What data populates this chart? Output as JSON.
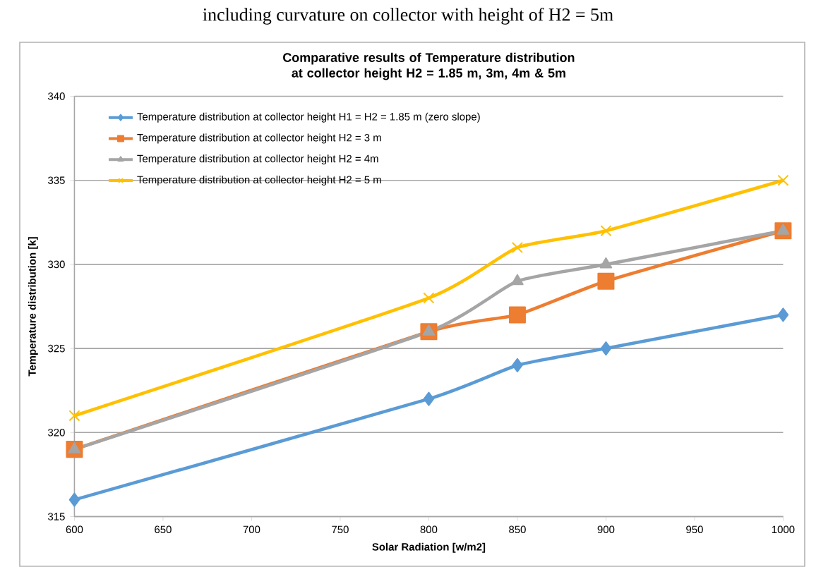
{
  "chart_data": {
    "type": "line",
    "title": "Comparative results of  Temperature distribution at collector height H2 = 1.85 m, 3m, 4m & 5m",
    "xlabel": "Solar Radiation [w/m2]",
    "ylabel": "Temperature distribution [k]",
    "annotations": [
      "including curvature on collector with height of H2 = 5m"
    ],
    "x": [
      600,
      800,
      850,
      900,
      1000
    ],
    "series": [
      {
        "name": "Temperature distribution at collector height H1 = H2 = 1.85 m (zero slope)",
        "color": "#5b9bd5",
        "marker": "diamond",
        "values": [
          316,
          322,
          324,
          325,
          327
        ]
      },
      {
        "name": "Temperature distribution at collector height H2 = 3 m",
        "color": "#ed7d31",
        "marker": "square",
        "values": [
          319,
          326,
          327,
          329,
          332
        ]
      },
      {
        "name": "Temperature distribution at collector height H2 = 4m",
        "color": "#a5a5a5",
        "marker": "triangle",
        "values": [
          319,
          326,
          329,
          330,
          332
        ]
      },
      {
        "name": "Temperature distribution at collector height H2 = 5 m",
        "color": "#ffc000",
        "marker": "cross",
        "values": [
          321,
          328,
          331,
          332,
          335
        ]
      }
    ],
    "xlim": [
      600,
      1000
    ],
    "xticks": [
      600,
      650,
      700,
      750,
      800,
      850,
      900,
      950,
      1000
    ],
    "ylim": [
      315,
      340
    ],
    "yticks": [
      315,
      320,
      325,
      330,
      335,
      340
    ],
    "grid": "y",
    "legend": "top left",
    "line_style": "solid"
  }
}
